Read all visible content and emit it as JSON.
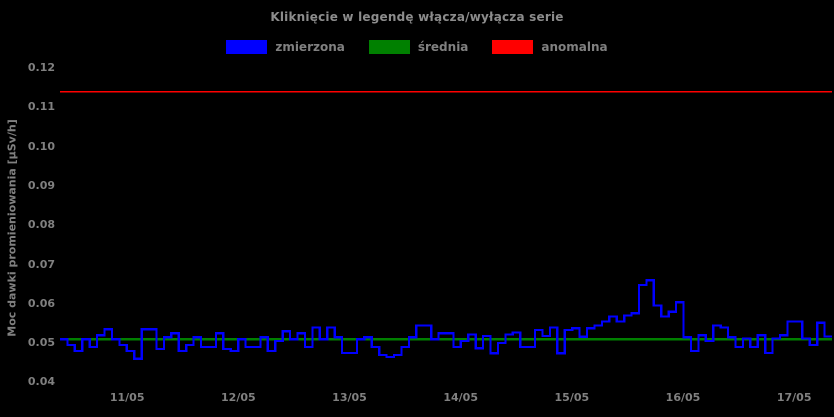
{
  "chart_data": {
    "type": "line",
    "title": "Kliknięcie w legendę włącza/wyłącza serie",
    "ylabel": "Moc dawki promieniowania [µSv/h]",
    "xlabel": "",
    "background_color": "#000000",
    "text_color": "#808080",
    "grid": false,
    "legend_position": "top",
    "ylim": [
      0.04,
      0.12
    ],
    "y_tick_labels": [
      "0.12",
      "0.11",
      "0.10",
      "0.09",
      "0.08",
      "0.07",
      "0.06",
      "0.05",
      "0.04"
    ],
    "x_tick_labels": [
      "11/05",
      "12/05",
      "13/05",
      "14/05",
      "15/05",
      "16/05",
      "17/05"
    ],
    "x_first_tick_frac": 0.087,
    "x_tick_step_frac": 0.144,
    "series": [
      {
        "name": "zmierzona",
        "color": "#0000ff",
        "style": "step",
        "values": [
          0.051,
          0.0495,
          0.048,
          0.051,
          0.049,
          0.052,
          0.0535,
          0.051,
          0.0495,
          0.048,
          0.046,
          0.0535,
          0.0535,
          0.0485,
          0.0515,
          0.0525,
          0.048,
          0.0495,
          0.0515,
          0.049,
          0.049,
          0.0525,
          0.0485,
          0.048,
          0.051,
          0.049,
          0.049,
          0.0515,
          0.048,
          0.0505,
          0.053,
          0.051,
          0.0525,
          0.049,
          0.054,
          0.051,
          0.054,
          0.0515,
          0.0475,
          0.0475,
          0.051,
          0.0515,
          0.049,
          0.047,
          0.0465,
          0.047,
          0.049,
          0.0515,
          0.0545,
          0.0545,
          0.051,
          0.0525,
          0.0525,
          0.049,
          0.0505,
          0.0522,
          0.0487,
          0.0518,
          0.0474,
          0.05,
          0.0522,
          0.0527,
          0.049,
          0.049,
          0.0533,
          0.0518,
          0.054,
          0.0474,
          0.0533,
          0.0538,
          0.0516,
          0.0538,
          0.0545,
          0.0555,
          0.0568,
          0.0555,
          0.057,
          0.0576,
          0.0648,
          0.066,
          0.0596,
          0.0568,
          0.058,
          0.0604,
          0.0515,
          0.048,
          0.052,
          0.0505,
          0.0545,
          0.054,
          0.0515,
          0.049,
          0.0512,
          0.049,
          0.052,
          0.0475,
          0.0512,
          0.052,
          0.0555,
          0.0555,
          0.0512,
          0.0495,
          0.0552,
          0.0517
        ]
      },
      {
        "name": "średnia",
        "color": "#008000",
        "style": "constant",
        "value": 0.051
      },
      {
        "name": "anomalna",
        "color": "#ff0000",
        "style": "constant",
        "value": 0.114
      }
    ]
  }
}
